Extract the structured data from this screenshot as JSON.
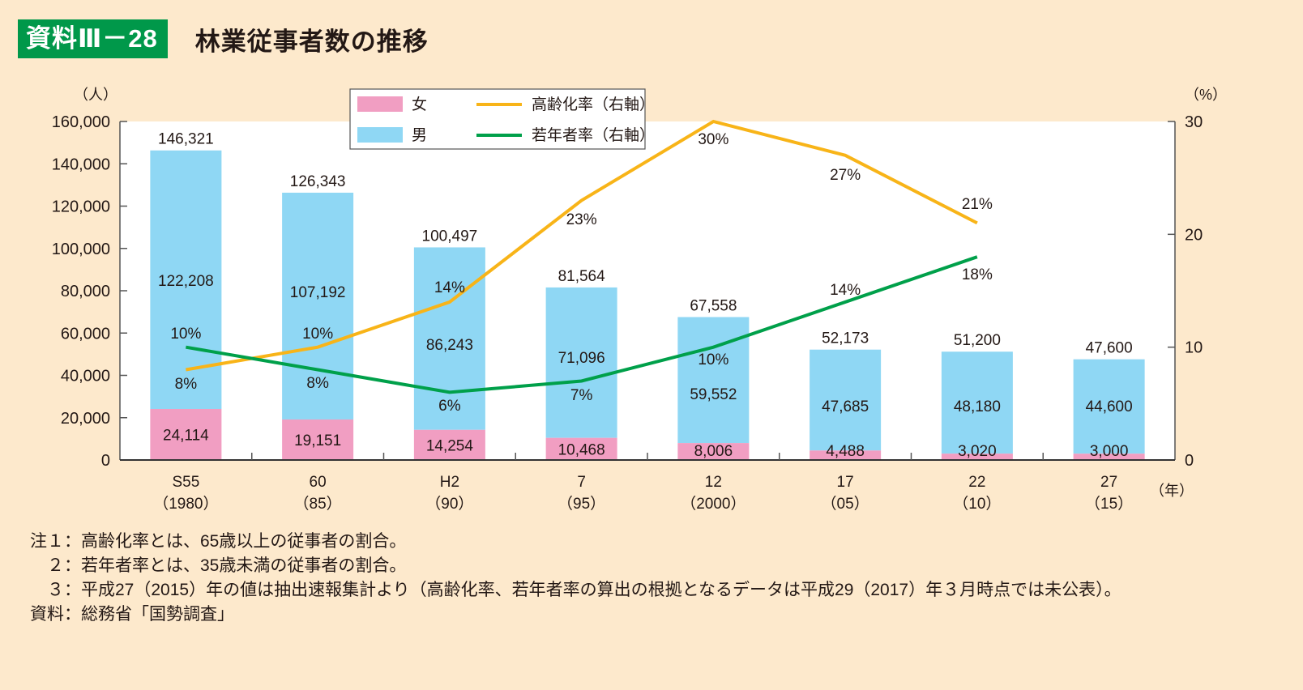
{
  "header": {
    "badge": "資料Ⅲ－28",
    "title": "林業従事者数の推移"
  },
  "colors": {
    "background": "#fde9cc",
    "plot_bg": "#ffffff",
    "female": "#f19ec2",
    "male": "#8fd7f4",
    "aging_rate": "#f8b418",
    "youth_rate": "#00a04a",
    "badge": "#00984a",
    "axis": "#555555"
  },
  "chart_data": {
    "type": "bar",
    "stacked": true,
    "title": "林業従事者数の推移",
    "y_left_unit": "（人）",
    "y_right_unit": "（%）",
    "x_unit": "（年）",
    "categories": [
      {
        "top": "S55",
        "bottom": "（1980）"
      },
      {
        "top": "60",
        "bottom": "（85）"
      },
      {
        "top": "H2",
        "bottom": "（90）"
      },
      {
        "top": "7",
        "bottom": "（95）"
      },
      {
        "top": "12",
        "bottom": "（2000）"
      },
      {
        "top": "17",
        "bottom": "（05）"
      },
      {
        "top": "22",
        "bottom": "（10）"
      },
      {
        "top": "27",
        "bottom": "（15）"
      }
    ],
    "ylim_left": [
      0,
      160000
    ],
    "yticks_left": [
      0,
      20000,
      40000,
      60000,
      80000,
      100000,
      120000,
      140000,
      160000
    ],
    "ytick_labels_left": [
      "0",
      "20,000",
      "40,000",
      "60,000",
      "80,000",
      "100,000",
      "120,000",
      "140,000",
      "160,000"
    ],
    "ylim_right": [
      0,
      30
    ],
    "yticks_right": [
      0,
      10,
      20,
      30
    ],
    "ytick_labels_right": [
      "0",
      "10",
      "20",
      "30"
    ],
    "grid": false,
    "legend_position": "top-center",
    "series": [
      {
        "name": "女",
        "kind": "bar",
        "axis": "left",
        "values": [
          24114,
          19151,
          14254,
          10468,
          8006,
          4488,
          3020,
          3000
        ],
        "labels": [
          "24,114",
          "19,151",
          "14,254",
          "10,468",
          "8,006",
          "4,488",
          "3,020",
          "3,000"
        ]
      },
      {
        "name": "男",
        "kind": "bar",
        "axis": "left",
        "values": [
          122208,
          107192,
          86243,
          71096,
          59552,
          47685,
          48180,
          44600
        ],
        "labels": [
          "122,208",
          "107,192",
          "86,243",
          "71,096",
          "59,552",
          "47,685",
          "48,180",
          "44,600"
        ]
      },
      {
        "name": "高齢化率（右軸）",
        "kind": "line",
        "axis": "right",
        "values": [
          8,
          10,
          14,
          23,
          30,
          27,
          21,
          null
        ],
        "labels": [
          "8%",
          "10%",
          "14%",
          "23%",
          "30%",
          "27%",
          "21%",
          ""
        ]
      },
      {
        "name": "若年者率（右軸）",
        "kind": "line",
        "axis": "right",
        "values": [
          10,
          8,
          6,
          7,
          10,
          14,
          18,
          null
        ],
        "labels": [
          "10%",
          "8%",
          "6%",
          "7%",
          "10%",
          "14%",
          "18%",
          ""
        ]
      }
    ],
    "totals": [
      146321,
      126343,
      100497,
      81564,
      67558,
      52173,
      51200,
      47600
    ],
    "total_labels": [
      "146,321",
      "126,343",
      "100,497",
      "81,564",
      "67,558",
      "52,173",
      "51,200",
      "47,600"
    ]
  },
  "notes": [
    {
      "key": "注１：",
      "text": "高齢化率とは、65歳以上の従事者の割合。"
    },
    {
      "key": "２：",
      "text": "若年者率とは、35歳未満の従事者の割合。"
    },
    {
      "key": "３：",
      "text": "平成27（2015）年の値は抽出速報集計より（高齢化率、若年者率の算出の根拠となるデータは平成29（2017）年３月時点では未公表）。"
    },
    {
      "key": "資料：",
      "text": "総務省「国勢調査」"
    }
  ]
}
